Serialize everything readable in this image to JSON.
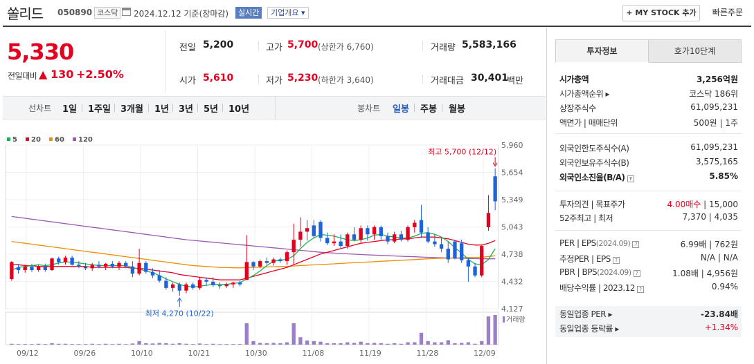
{
  "header": {
    "stock_name": "쏠리드",
    "stock_code": "050890",
    "market": "코스닥",
    "date_basis": "2024.12.12  기준(장마감)",
    "realtime_label": "실시간",
    "overview_label": "기업개요 ▾",
    "mystock_label": "+ MY STOCK 추가",
    "quick_order_label": "빠른주문"
  },
  "summary": {
    "price": "5,330",
    "change_label": "전일대비",
    "change_arrow": "▲",
    "change_value": "130",
    "change_pct": "+2.50%"
  },
  "quote": {
    "prev_label": "전일",
    "prev": "5,200",
    "high_label": "고가",
    "high": "5,700",
    "upper_limit": "(상한가 6,760)",
    "volume_label": "거래량",
    "volume": "5,583,166",
    "open_label": "시가",
    "open": "5,610",
    "low_label": "저가",
    "low": "5,230",
    "lower_limit": "(하한가 3,640)",
    "amount_label": "거래대금",
    "amount": "30,401",
    "amount_unit": "백만"
  },
  "period_bar": {
    "line_label": "선차트",
    "line_periods": [
      "1일",
      "1주일",
      "3개월",
      "1년",
      "3년",
      "5년",
      "10년"
    ],
    "candle_label": "봉차트",
    "candle_periods": [
      "일봉",
      "주봉",
      "월봉"
    ],
    "candle_active": "일봉"
  },
  "chart_data": {
    "type": "candlestick",
    "legend": [
      {
        "name": "5",
        "color": "#1fb14c"
      },
      {
        "name": "20",
        "color": "#e4001f"
      },
      {
        "name": "60",
        "color": "#f08c00"
      },
      {
        "name": "120",
        "color": "#9b59b6"
      }
    ],
    "y_ticks": [
      5960,
      5654,
      5349,
      5043,
      4738,
      4432,
      4127
    ],
    "ylim": [
      4127,
      5960
    ],
    "x_labels": [
      "09/12",
      "09/26",
      "10/10",
      "10/21",
      "10/30",
      "11/08",
      "11/19",
      "11/28",
      "12/09"
    ],
    "max_annotation": "최고 5,700 (12/12)",
    "min_annotation": "최저 4,270 (10/22)",
    "volume_label": "거래량",
    "up_color": "#e4001f",
    "down_color": "#1e64d8",
    "candles": [
      {
        "o": 4460,
        "h": 4660,
        "l": 4440,
        "c": 4650
      },
      {
        "o": 4590,
        "h": 4630,
        "l": 4520,
        "c": 4560
      },
      {
        "o": 4560,
        "h": 4620,
        "l": 4530,
        "c": 4600
      },
      {
        "o": 4600,
        "h": 4630,
        "l": 4540,
        "c": 4560
      },
      {
        "o": 4560,
        "h": 4620,
        "l": 4540,
        "c": 4600
      },
      {
        "o": 4600,
        "h": 4630,
        "l": 4540,
        "c": 4560
      },
      {
        "o": 4560,
        "h": 4700,
        "l": 4550,
        "c": 4690
      },
      {
        "o": 4690,
        "h": 4710,
        "l": 4620,
        "c": 4650
      },
      {
        "o": 4650,
        "h": 4720,
        "l": 4620,
        "c": 4700
      },
      {
        "o": 4700,
        "h": 4720,
        "l": 4610,
        "c": 4620
      },
      {
        "o": 4620,
        "h": 4660,
        "l": 4580,
        "c": 4600
      },
      {
        "o": 4600,
        "h": 4640,
        "l": 4560,
        "c": 4580
      },
      {
        "o": 4580,
        "h": 4640,
        "l": 4550,
        "c": 4620
      },
      {
        "o": 4620,
        "h": 4660,
        "l": 4580,
        "c": 4600
      },
      {
        "o": 4600,
        "h": 4640,
        "l": 4560,
        "c": 4630
      },
      {
        "o": 4630,
        "h": 4660,
        "l": 4580,
        "c": 4600
      },
      {
        "o": 4600,
        "h": 4660,
        "l": 4560,
        "c": 4640
      },
      {
        "o": 4640,
        "h": 4660,
        "l": 4580,
        "c": 4600
      },
      {
        "o": 4600,
        "h": 4660,
        "l": 4480,
        "c": 4520
      },
      {
        "o": 4520,
        "h": 4800,
        "l": 4500,
        "c": 4640
      },
      {
        "o": 4640,
        "h": 4660,
        "l": 4520,
        "c": 4540
      },
      {
        "o": 4540,
        "h": 4580,
        "l": 4470,
        "c": 4500
      },
      {
        "o": 4500,
        "h": 4560,
        "l": 4420,
        "c": 4440
      },
      {
        "o": 4440,
        "h": 4480,
        "l": 4340,
        "c": 4360
      },
      {
        "o": 4360,
        "h": 4420,
        "l": 4320,
        "c": 4400
      },
      {
        "o": 4400,
        "h": 4420,
        "l": 4270,
        "c": 4330
      },
      {
        "o": 4330,
        "h": 4420,
        "l": 4300,
        "c": 4400
      },
      {
        "o": 4400,
        "h": 4420,
        "l": 4340,
        "c": 4360
      },
      {
        "o": 4360,
        "h": 4480,
        "l": 4340,
        "c": 4450
      },
      {
        "o": 4450,
        "h": 4480,
        "l": 4380,
        "c": 4430
      },
      {
        "o": 4430,
        "h": 4480,
        "l": 4370,
        "c": 4390
      },
      {
        "o": 4390,
        "h": 4420,
        "l": 4350,
        "c": 4380
      },
      {
        "o": 4380,
        "h": 4420,
        "l": 4360,
        "c": 4400
      },
      {
        "o": 4400,
        "h": 4430,
        "l": 4360,
        "c": 4420
      },
      {
        "o": 4420,
        "h": 4440,
        "l": 4380,
        "c": 4400
      },
      {
        "o": 4450,
        "h": 4950,
        "l": 4450,
        "c": 4650
      },
      {
        "o": 4650,
        "h": 4660,
        "l": 4560,
        "c": 4600
      },
      {
        "o": 4600,
        "h": 4680,
        "l": 4580,
        "c": 4660
      },
      {
        "o": 4660,
        "h": 4700,
        "l": 4620,
        "c": 4640
      },
      {
        "o": 4640,
        "h": 4700,
        "l": 4610,
        "c": 4680
      },
      {
        "o": 4680,
        "h": 4700,
        "l": 4640,
        "c": 4660
      },
      {
        "o": 4660,
        "h": 4780,
        "l": 4620,
        "c": 4760
      },
      {
        "o": 4760,
        "h": 5080,
        "l": 4620,
        "c": 4900
      },
      {
        "o": 4900,
        "h": 5150,
        "l": 4820,
        "c": 4990
      },
      {
        "o": 4990,
        "h": 5120,
        "l": 4890,
        "c": 5030
      },
      {
        "o": 5060,
        "h": 5120,
        "l": 4920,
        "c": 4940
      },
      {
        "o": 5100,
        "h": 5120,
        "l": 4880,
        "c": 4920
      },
      {
        "o": 4920,
        "h": 4980,
        "l": 4840,
        "c": 4860
      },
      {
        "o": 4860,
        "h": 4960,
        "l": 4830,
        "c": 4880
      },
      {
        "o": 4880,
        "h": 4960,
        "l": 4800,
        "c": 4830
      },
      {
        "o": 4830,
        "h": 4980,
        "l": 4800,
        "c": 4960
      },
      {
        "o": 4960,
        "h": 5040,
        "l": 4880,
        "c": 4900
      },
      {
        "o": 4900,
        "h": 5060,
        "l": 4870,
        "c": 5030
      },
      {
        "o": 5030,
        "h": 5060,
        "l": 4890,
        "c": 4960
      },
      {
        "o": 4960,
        "h": 5060,
        "l": 4900,
        "c": 5040
      },
      {
        "o": 5040,
        "h": 5060,
        "l": 4900,
        "c": 4940
      },
      {
        "o": 4940,
        "h": 4980,
        "l": 4850,
        "c": 4880
      },
      {
        "o": 4880,
        "h": 4990,
        "l": 4860,
        "c": 4960
      },
      {
        "o": 4960,
        "h": 5000,
        "l": 4880,
        "c": 4900
      },
      {
        "o": 4900,
        "h": 5060,
        "l": 4880,
        "c": 5040
      },
      {
        "o": 5040,
        "h": 5120,
        "l": 4980,
        "c": 5090
      },
      {
        "o": 5120,
        "h": 5290,
        "l": 4920,
        "c": 4980
      },
      {
        "o": 4980,
        "h": 5040,
        "l": 4860,
        "c": 4880
      },
      {
        "o": 4880,
        "h": 4960,
        "l": 4820,
        "c": 4850
      },
      {
        "o": 4850,
        "h": 4920,
        "l": 4760,
        "c": 4800
      },
      {
        "o": 4800,
        "h": 4880,
        "l": 4640,
        "c": 4680
      },
      {
        "o": 4880,
        "h": 4900,
        "l": 4680,
        "c": 4690
      },
      {
        "o": 4860,
        "h": 4900,
        "l": 4640,
        "c": 4670
      },
      {
        "o": 4670,
        "h": 4700,
        "l": 4430,
        "c": 4600
      },
      {
        "o": 4600,
        "h": 4640,
        "l": 4480,
        "c": 4500
      },
      {
        "o": 4500,
        "h": 4840,
        "l": 4480,
        "c": 4830
      },
      {
        "o": 5040,
        "h": 5400,
        "l": 5000,
        "c": 5200
      },
      {
        "o": 5610,
        "h": 5700,
        "l": 5230,
        "c": 5330
      }
    ],
    "ma5": [
      4560,
      4590,
      4600,
      4610,
      4620,
      4610,
      4620,
      4640,
      4650,
      4650,
      4640,
      4630,
      4620,
      4610,
      4610,
      4610,
      4610,
      4610,
      4590,
      4570,
      4550,
      4530,
      4500,
      4460,
      4430,
      4400,
      4380,
      4370,
      4380,
      4390,
      4400,
      4400,
      4400,
      4410,
      4420,
      4460,
      4500,
      4550,
      4610,
      4660,
      4670,
      4680,
      4720,
      4800,
      4870,
      4920,
      4960,
      4950,
      4940,
      4920,
      4900,
      4890,
      4900,
      4920,
      4950,
      4960,
      4940,
      4930,
      4920,
      4920,
      4940,
      4970,
      4980,
      4960,
      4930,
      4880,
      4810,
      4750,
      4680,
      4630,
      4620,
      4680,
      4800
    ],
    "ma20": [
      4620,
      4620,
      4610,
      4610,
      4600,
      4600,
      4600,
      4600,
      4600,
      4600,
      4600,
      4600,
      4590,
      4590,
      4590,
      4590,
      4590,
      4590,
      4580,
      4580,
      4570,
      4560,
      4550,
      4540,
      4530,
      4510,
      4500,
      4490,
      4480,
      4470,
      4460,
      4450,
      4450,
      4450,
      4450,
      4470,
      4490,
      4510,
      4530,
      4550,
      4570,
      4590,
      4620,
      4650,
      4680,
      4710,
      4740,
      4760,
      4780,
      4800,
      4820,
      4840,
      4860,
      4870,
      4880,
      4890,
      4900,
      4900,
      4910,
      4910,
      4920,
      4930,
      4930,
      4930,
      4920,
      4910,
      4890,
      4870,
      4850,
      4840,
      4840,
      4860,
      4890
    ],
    "ma60": [
      4880,
      4870,
      4860,
      4850,
      4840,
      4830,
      4820,
      4810,
      4800,
      4790,
      4780,
      4770,
      4760,
      4750,
      4740,
      4730,
      4720,
      4710,
      4700,
      4690,
      4680,
      4670,
      4660,
      4650,
      4640,
      4630,
      4620,
      4610,
      4605,
      4600,
      4595,
      4590,
      4588,
      4586,
      4585,
      4588,
      4590,
      4592,
      4595,
      4598,
      4600,
      4603,
      4606,
      4610,
      4614,
      4618,
      4622,
      4626,
      4630,
      4634,
      4638,
      4642,
      4646,
      4650,
      4654,
      4658,
      4662,
      4666,
      4670,
      4674,
      4678,
      4682,
      4686,
      4690,
      4692,
      4694,
      4696,
      4698,
      4700,
      4702,
      4705,
      4712,
      4720
    ],
    "ma120": [
      5160,
      5150,
      5140,
      5130,
      5120,
      5110,
      5100,
      5090,
      5080,
      5070,
      5060,
      5050,
      5040,
      5030,
      5020,
      5010,
      5000,
      4990,
      4980,
      4970,
      4960,
      4950,
      4940,
      4930,
      4920,
      4910,
      4900,
      4893,
      4886,
      4879,
      4872,
      4865,
      4858,
      4851,
      4844,
      4837,
      4830,
      4823,
      4816,
      4809,
      4802,
      4795,
      4788,
      4781,
      4774,
      4767,
      4760,
      4755,
      4750,
      4746,
      4742,
      4738,
      4734,
      4730,
      4727,
      4724,
      4721,
      4718,
      4715,
      4712,
      4709,
      4706,
      4703,
      4700,
      4698,
      4696,
      4694,
      4692,
      4690,
      4688,
      4686,
      4686,
      4686
    ],
    "volume": [
      0.03,
      0.02,
      0.02,
      0.02,
      0.03,
      0.02,
      0.05,
      0.03,
      0.03,
      0.02,
      0.02,
      0.02,
      0.03,
      0.02,
      0.03,
      0.02,
      0.03,
      0.02,
      0.04,
      0.12,
      0.05,
      0.04,
      0.06,
      0.05,
      0.03,
      0.05,
      0.03,
      0.02,
      0.04,
      0.02,
      0.03,
      0.02,
      0.02,
      0.02,
      0.02,
      0.72,
      0.12,
      0.06,
      0.05,
      0.06,
      0.05,
      0.08,
      0.72,
      0.25,
      0.14,
      0.12,
      0.1,
      0.05,
      0.05,
      0.05,
      0.08,
      0.06,
      0.1,
      0.05,
      0.06,
      0.05,
      0.03,
      0.05,
      0.03,
      0.08,
      0.08,
      0.4,
      0.12,
      0.08,
      0.08,
      0.15,
      0.05,
      0.06,
      0.08,
      0.03,
      0.12,
      0.95,
      1.0
    ]
  },
  "right_panel": {
    "tabs": [
      "투자정보",
      "호가10단계"
    ],
    "rows1": [
      {
        "label": "시가총액",
        "value": "3,256억원",
        "bold": true
      },
      {
        "label": "시가총액순위 ▸",
        "value": "코스닥 186위"
      },
      {
        "label": "상장주식수",
        "value": "61,095,231"
      },
      {
        "label": "액면가 | 매매단위",
        "value": "500원 | 1주"
      }
    ],
    "rows2": [
      {
        "label": "외국인한도주식수(A)",
        "value": "61,095,231"
      },
      {
        "label": "외국인보유주식수(B)",
        "value": "3,575,165"
      },
      {
        "label": "외국인소진율(B/A)",
        "value": "5.85%",
        "bold": true
      }
    ],
    "rows3": [
      {
        "label": "투자의견 | 목표주가",
        "value_red": "4.00매수",
        "value": " | 15,000"
      },
      {
        "label": "52주최고 | 최저",
        "value": "7,370 | 4,035"
      }
    ],
    "rows4": [
      {
        "label": "PER | EPS",
        "sub": "(2024.09)",
        "value": "6.99배 | 762원"
      },
      {
        "label": "추정PER | EPS",
        "sub": "",
        "value": "N/A | N/A"
      },
      {
        "label": "PBR | BPS",
        "sub": "(2024.09)",
        "value": "1.08배 | 4,956원"
      },
      {
        "label": "배당수익률 | 2023.12",
        "sub": "",
        "value": "0.94%"
      }
    ],
    "rows5": [
      {
        "label": "동일업종 PER ▸",
        "value": "-23.84배"
      },
      {
        "label": "동일업종 등락률 ▸",
        "value": "+1.34%"
      }
    ]
  }
}
